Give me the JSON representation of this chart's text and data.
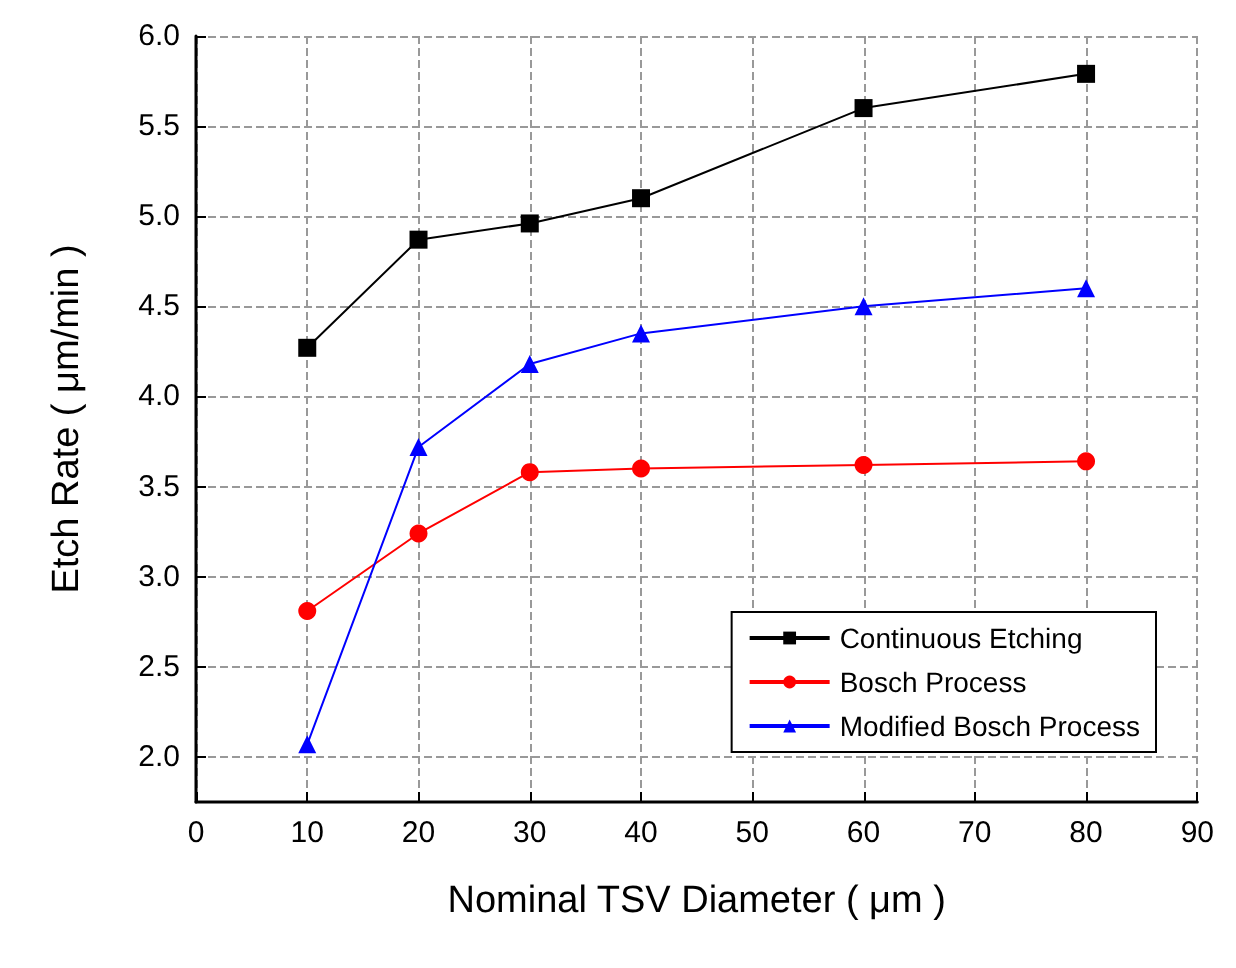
{
  "chart_data": {
    "type": "line",
    "xlabel": "Nominal TSV Diameter ( μm )",
    "ylabel": "Etch Rate ( μm/min )",
    "x": [
      10,
      20,
      30,
      40,
      60,
      80
    ],
    "series": [
      {
        "name": "Continuous Etching",
        "color": "#000000",
        "marker": "square",
        "values": [
          4.27,
          4.87,
          4.96,
          5.1,
          5.6,
          5.79
        ]
      },
      {
        "name": "Bosch Process",
        "color": "#ff0000",
        "marker": "circle",
        "values": [
          2.81,
          3.24,
          3.58,
          3.6,
          3.62,
          3.64
        ]
      },
      {
        "name": "Modified Bosch Process",
        "color": "#0000ff",
        "marker": "triangle",
        "values": [
          2.07,
          3.72,
          4.18,
          4.35,
          4.5,
          4.6
        ]
      }
    ],
    "xlim": [
      0,
      90
    ],
    "xticks": [
      0,
      10,
      20,
      30,
      40,
      50,
      60,
      70,
      80,
      90
    ],
    "ylim": [
      1.75,
      6.0
    ],
    "yticks": [
      {
        "value": 2,
        "label": "2.0"
      },
      2.5,
      {
        "value": 3,
        "label": "3.0"
      },
      3.5,
      {
        "value": 4,
        "label": "4.0"
      },
      4.5,
      {
        "value": 5,
        "label": "5.0"
      },
      5.5,
      {
        "value": 6,
        "label": "6.0"
      }
    ],
    "grid": true,
    "legend": "bottom right",
    "line_style": "solid"
  }
}
